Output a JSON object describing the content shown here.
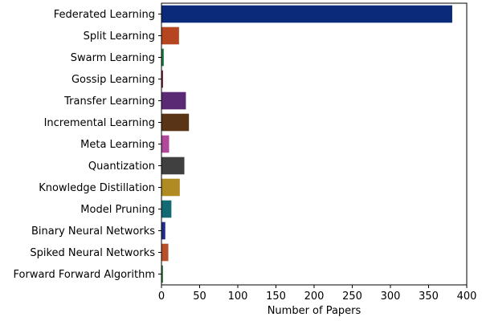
{
  "chart_data": {
    "type": "bar",
    "orientation": "horizontal",
    "title": "",
    "xlabel": "Number of Papers",
    "ylabel": "",
    "xlim": [
      0,
      400
    ],
    "xticks": [
      0,
      50,
      100,
      150,
      200,
      250,
      300,
      350,
      400
    ],
    "grid": false,
    "categories": [
      "Federated Learning",
      "Split Learning",
      "Swarm Learning",
      "Gossip Learning",
      "Transfer Learning",
      "Incremental Learning",
      "Meta Learning",
      "Quantization",
      "Knowledge Distillation",
      "Model Pruning",
      "Binary Neural Networks",
      "Spiked Neural Networks",
      "Forward Forward Algorithm"
    ],
    "values": [
      381,
      23,
      3,
      2,
      32,
      36,
      10,
      30,
      24,
      13,
      5,
      9,
      2
    ],
    "colors": [
      "#0b2a7a",
      "#b5461f",
      "#1d7a3a",
      "#7a1a2a",
      "#5b2a74",
      "#5a3416",
      "#b0489b",
      "#404040",
      "#b08a22",
      "#136a73",
      "#1f2f85",
      "#b8512a",
      "#2e7d42"
    ]
  }
}
